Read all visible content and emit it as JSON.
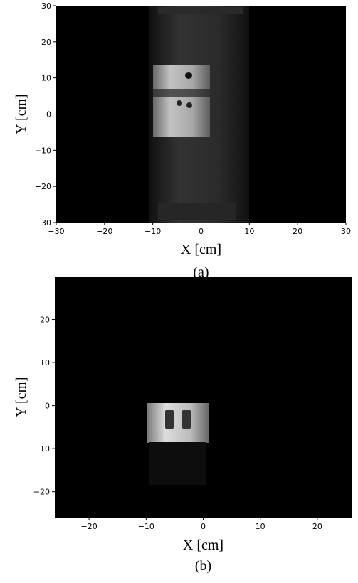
{
  "chart_data": [
    {
      "type": "image",
      "xlabel": "X [cm]",
      "ylabel": "Y [cm]",
      "caption": "(a)",
      "xlim": [
        -30,
        30
      ],
      "ylim": [
        -30,
        30
      ],
      "xticks": [
        {
          "value": -30,
          "label": "−30"
        },
        {
          "value": -20,
          "label": "−20"
        },
        {
          "value": -10,
          "label": "−10"
        },
        0,
        10,
        20,
        30
      ],
      "yticks": [
        {
          "value": -30,
          "label": "−30"
        },
        {
          "value": -20,
          "label": "−20"
        },
        {
          "value": -10,
          "label": "−10"
        },
        0,
        10,
        20,
        30
      ]
    },
    {
      "type": "image",
      "xlabel": "X [cm]",
      "ylabel": "Y [cm]",
      "caption": "(b)",
      "xlim": [
        -26,
        26
      ],
      "ylim": [
        -26,
        30
      ],
      "xticks": [
        {
          "value": -20,
          "label": "−20"
        },
        {
          "value": -10,
          "label": "−10"
        },
        0,
        10,
        20
      ],
      "yticks": [
        {
          "value": -20,
          "label": "−20"
        },
        {
          "value": -10,
          "label": "−10"
        },
        0,
        10,
        20
      ]
    }
  ]
}
